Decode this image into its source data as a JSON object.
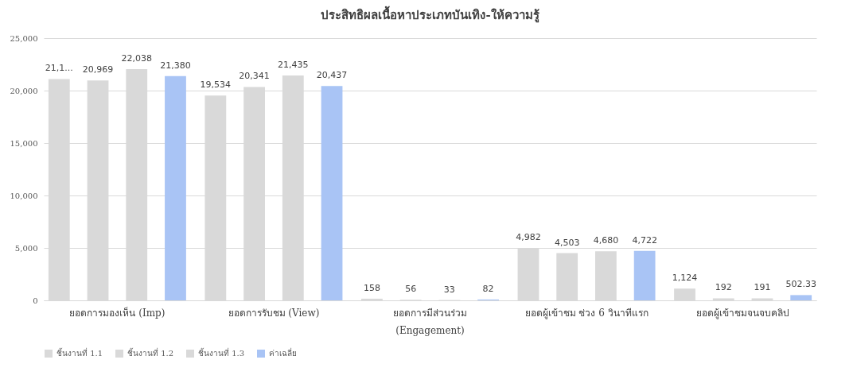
{
  "chart_data": {
    "type": "bar",
    "title": "ประสิทธิผลเนื้อหาประเภทบันเทิง-ให้ความรู้",
    "categories": [
      "ยอดการมองเห็น (Imp)",
      "ยอดการรับชม (View)",
      "ยอดการมีส่วนร่วม\n(Engagement)",
      "ยอดผู้เข้าชม ช่วง 6 วินาทีแรก",
      "ยอดผู้เข้าชมจนจบคลิป"
    ],
    "series": [
      {
        "name": "ชิ้นงานที่ 1.1",
        "color": "#d9d9d9",
        "values": [
          21100,
          19534,
          158,
          4982,
          1124
        ],
        "value_labels": [
          "21,1...",
          "19,534",
          "158",
          "4,982",
          "1,124"
        ]
      },
      {
        "name": "ชิ้นงานที่ 1.2",
        "color": "#d9d9d9",
        "values": [
          20969,
          20341,
          56,
          4503,
          192
        ],
        "value_labels": [
          "20,969",
          "20,341",
          "56",
          "4,503",
          "192"
        ]
      },
      {
        "name": "ชิ้นงานที่ 1.3",
        "color": "#d9d9d9",
        "values": [
          22038,
          21435,
          33,
          4680,
          191
        ],
        "value_labels": [
          "22,038",
          "21,435",
          "33",
          "4,680",
          "191"
        ]
      },
      {
        "name": "ค่าเฉลี่ย",
        "color": "#a9c4f5",
        "values": [
          21380,
          20437,
          82,
          4722,
          502.33
        ],
        "value_labels": [
          "21,380",
          "20,437",
          "82",
          "4,722",
          "502.33"
        ]
      }
    ],
    "ylim": [
      0,
      25000
    ],
    "yticks": [
      0,
      {
        "value": 5000,
        "label": "5,000"
      },
      {
        "value": 10000,
        "label": "10,000"
      },
      {
        "value": 15000,
        "label": "15,000"
      },
      {
        "value": 20000,
        "label": "20,000"
      },
      {
        "value": 25000,
        "label": "25,000"
      }
    ],
    "grid": "y",
    "legend": "bottom"
  }
}
